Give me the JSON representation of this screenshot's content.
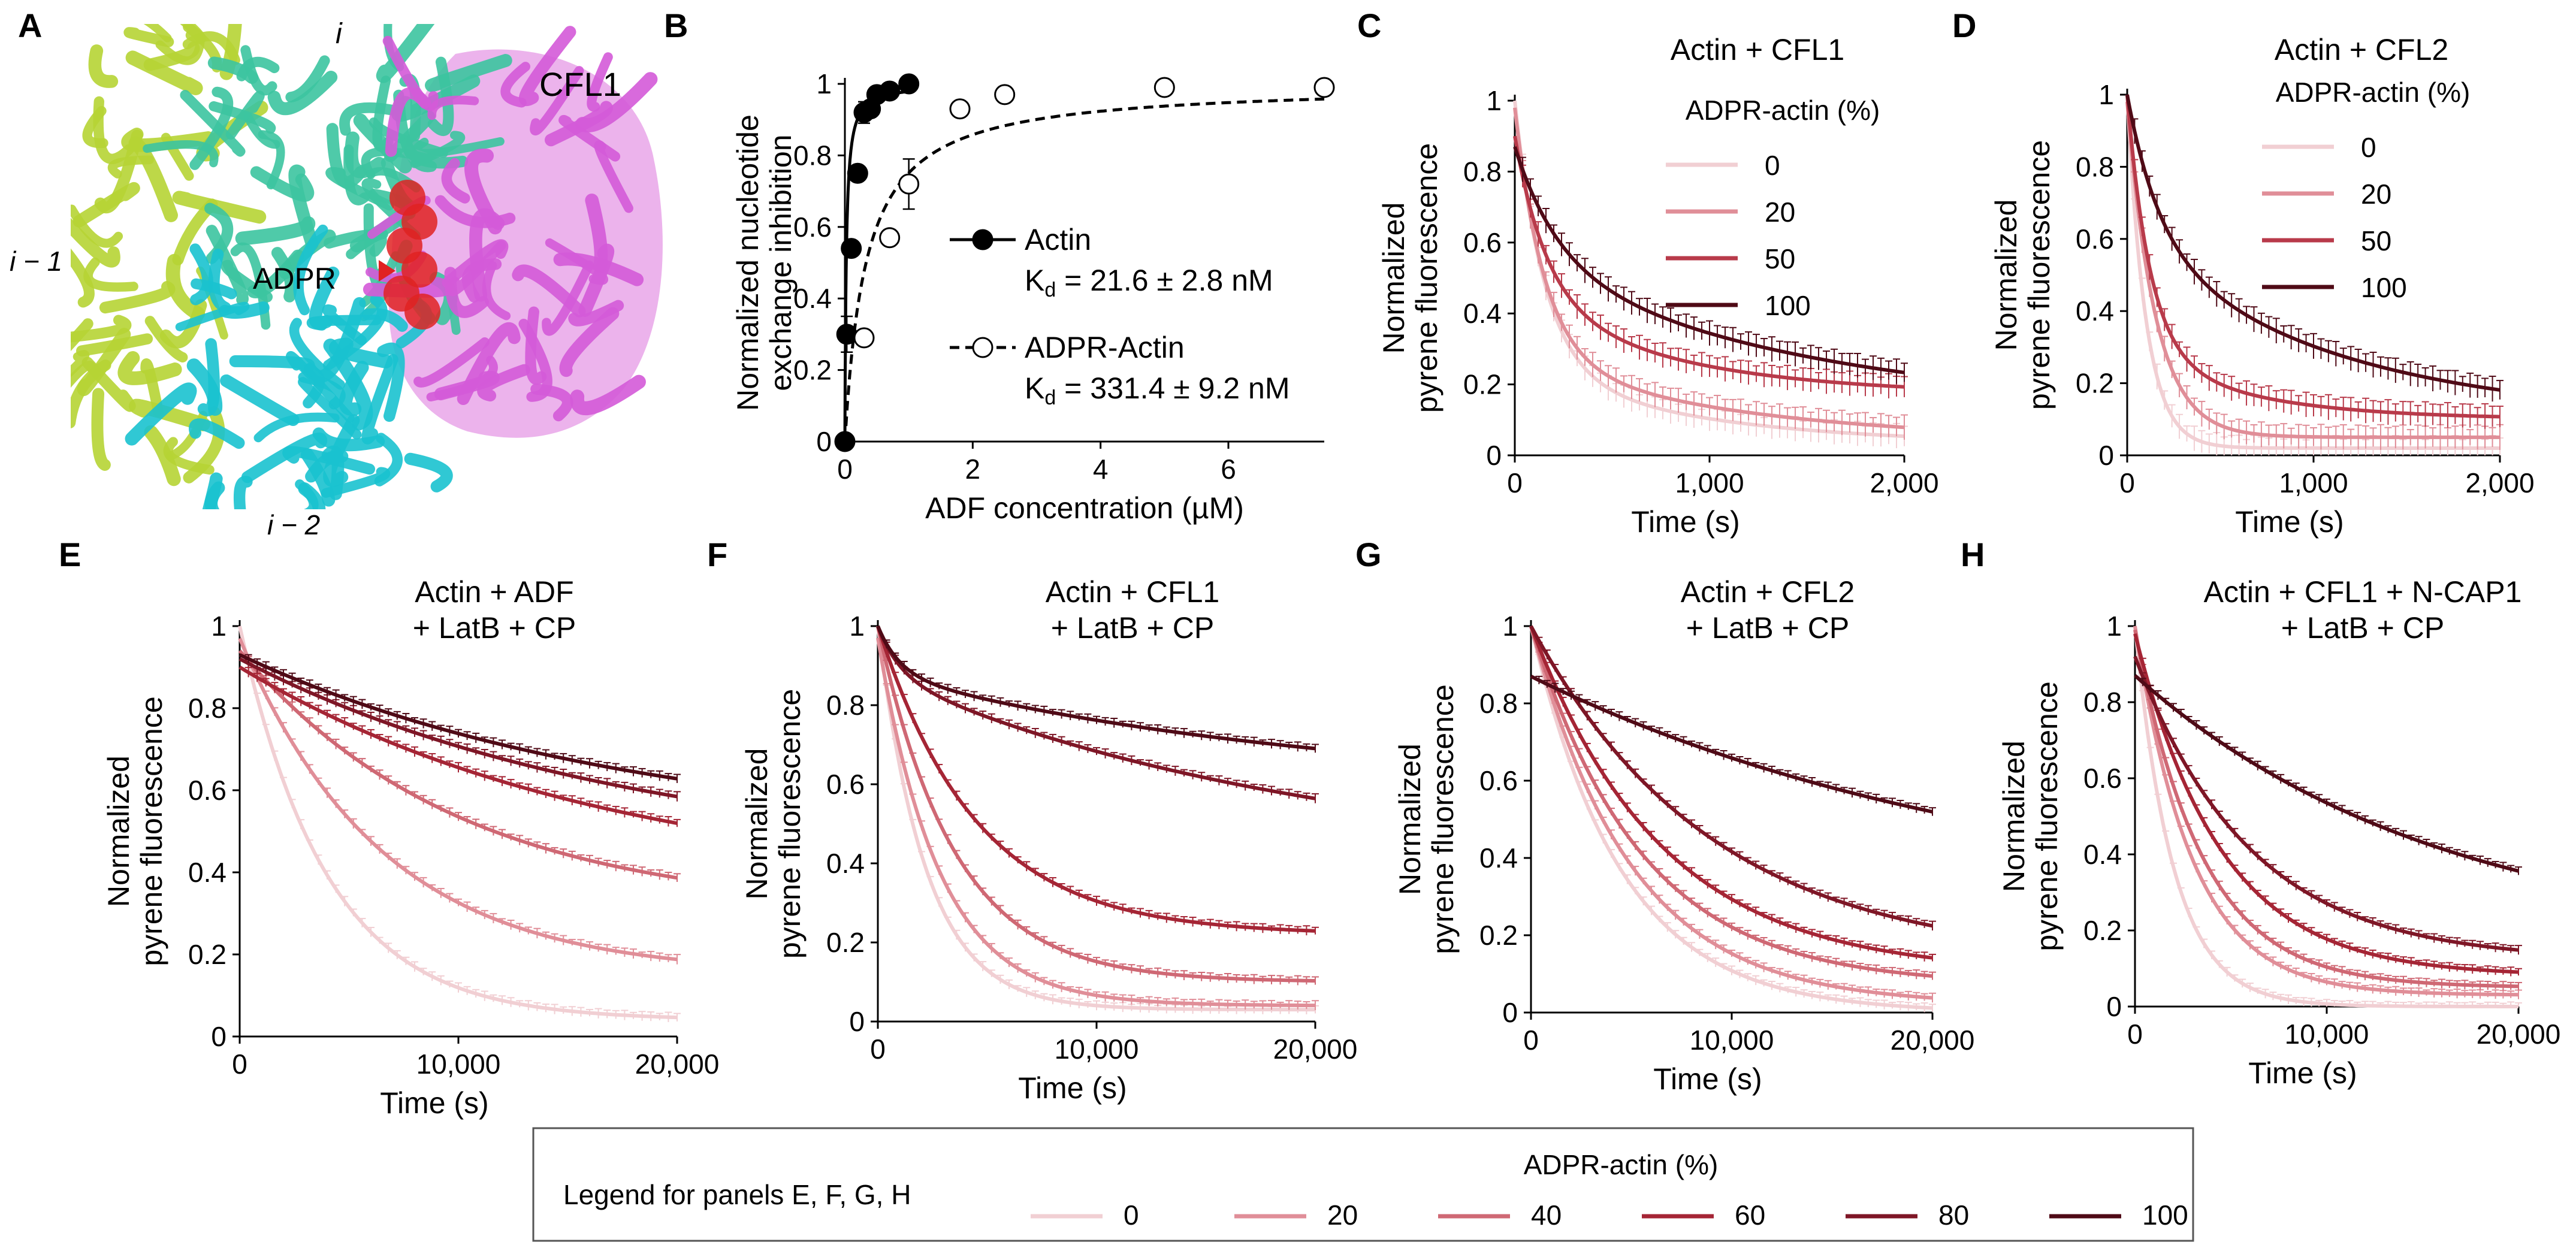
{
  "colors": {
    "p0": "#f1cfd3",
    "p20": "#e08e98",
    "p40": "#cf6874",
    "p50": "#b83a4a",
    "p60": "#a52535",
    "p80": "#7e1626",
    "p100": "#4f0a16",
    "yellowgreen": "#b6d434",
    "teal": "#3cc4a0",
    "cyan": "#19c2cf",
    "magenta": "#d45ad8",
    "pink": "#e59ae6",
    "red": "#e02222",
    "label_yellow": "#c8d40a",
    "label_teal": "#2bb48f",
    "label_cyan": "#20c4d6",
    "label_cfl1": "#e040e0"
  },
  "panelA": {
    "letter": "A",
    "labels": {
      "i": "i",
      "i_minus_1": "i − 1",
      "i_minus_2": "i − 2",
      "cfl1": "CFL1",
      "adpr": "ADPR"
    }
  },
  "chart_data": [
    {
      "panel": "B",
      "type": "scatter",
      "ylabel": [
        "Normalized nucleotide",
        "exchange inhibition"
      ],
      "xlabel": "ADF concentration (µM)",
      "xlim": [
        0,
        7.5
      ],
      "ylim": [
        0,
        1
      ],
      "xticks": [
        0,
        2,
        4,
        6
      ],
      "xtick_labels": [
        "0",
        "2",
        "4",
        "6"
      ],
      "yticks": [
        0,
        0.2,
        0.4,
        0.6,
        0.8,
        1
      ],
      "ytick_labels": [
        "0",
        "0.2",
        "0.4",
        "0.6",
        "0.8",
        "1"
      ],
      "series": [
        {
          "name": "Actin",
          "kd_label": "K",
          "kd_sub": "d",
          "kd_value": " = 21.6 ± 2.8 nM",
          "Kd": 0.0216,
          "filled": true,
          "line": "solid",
          "x": [
            0,
            0.03,
            0.1,
            0.2,
            0.3,
            0.4,
            0.5,
            0.7,
            1.0
          ],
          "y": [
            0,
            0.3,
            0.54,
            0.75,
            0.92,
            0.93,
            0.97,
            0.98,
            1.0
          ],
          "err": [
            0,
            0.05,
            0.02,
            0.02,
            0.03,
            0.02,
            0.02,
            0.02,
            0.01
          ]
        },
        {
          "name": "ADPR-Actin",
          "kd_label": "K",
          "kd_sub": "d",
          "kd_value": " = 331.4 ± 9.2 nM",
          "Kd": 0.3314,
          "filled": false,
          "line": "dashed",
          "x": [
            0.3,
            0.7,
            1.0,
            1.8,
            2.5,
            5.0,
            7.5
          ],
          "y": [
            0.29,
            0.57,
            0.72,
            0.93,
            0.97,
            0.99,
            0.99
          ],
          "err": [
            0.02,
            0.02,
            0.07,
            0.02,
            0.02,
            0.02,
            0.02
          ]
        }
      ]
    },
    {
      "panel": "C",
      "type": "line",
      "title": [
        "Actin + CFL1"
      ],
      "legend_title": "ADPR-actin (%)",
      "legend_values": [
        "0",
        "20",
        "50",
        "100"
      ],
      "legend_colors": [
        "p0",
        "p20",
        "p50",
        "p100"
      ],
      "ylabel": [
        "Normalized",
        "pyrene fluorescence"
      ],
      "xlabel": "Time (s)",
      "xlim": [
        0,
        2000
      ],
      "ylim": [
        0,
        1
      ],
      "xticks": [
        0,
        1000,
        2000
      ],
      "xtick_labels": [
        "0",
        "1,000",
        "2,000"
      ],
      "yticks": [
        0,
        0.2,
        0.4,
        0.6,
        0.8,
        1
      ],
      "ytick_labels": [
        "0",
        "0.2",
        "0.4",
        "0.6",
        "0.8",
        "1"
      ],
      "series": [
        {
          "name": "0",
          "color": "p0",
          "model": [
            [
              0.75,
              150
            ],
            [
              0.22,
              900
            ]
          ],
          "plateau": 0.03
        },
        {
          "name": "20",
          "color": "p20",
          "model": [
            [
              0.7,
              150
            ],
            [
              0.24,
              1100
            ]
          ],
          "plateau": 0.04
        },
        {
          "name": "50",
          "color": "p50",
          "model": [
            [
              0.45,
              160
            ],
            [
              0.28,
              800
            ]
          ],
          "plateau": 0.17
        },
        {
          "name": "100",
          "color": "p100",
          "model": [
            [
              0.32,
              220
            ],
            [
              0.43,
              1500
            ]
          ],
          "plateau": 0.12
        }
      ]
    },
    {
      "panel": "D",
      "type": "line",
      "title": [
        "Actin + CFL2"
      ],
      "legend_title": "ADPR-actin (%)",
      "legend_values": [
        "0",
        "20",
        "50",
        "100"
      ],
      "legend_colors": [
        "p0",
        "p20",
        "p50",
        "p100"
      ],
      "ylabel": [
        "Normalized",
        "pyrene fluorescence"
      ],
      "xlabel": "Time (s)",
      "xlim": [
        0,
        2000
      ],
      "ylim": [
        0,
        1
      ],
      "xticks": [
        0,
        1000,
        2000
      ],
      "xtick_labels": [
        "0",
        "1,000",
        "2,000"
      ],
      "yticks": [
        0,
        0.2,
        0.4,
        0.6,
        0.8,
        1
      ],
      "ytick_labels": [
        "0",
        "0.2",
        "0.4",
        "0.6",
        "0.8",
        "1"
      ],
      "series": [
        {
          "name": "0",
          "color": "p0",
          "model": [
            [
              0.98,
              100
            ]
          ],
          "plateau": 0.02
        },
        {
          "name": "20",
          "color": "p20",
          "model": [
            [
              0.93,
              150
            ]
          ],
          "plateau": 0.05
        },
        {
          "name": "50",
          "color": "p50",
          "model": [
            [
              0.7,
              120
            ],
            [
              0.2,
              600
            ]
          ],
          "plateau": 0.1
        },
        {
          "name": "100",
          "color": "p100",
          "model": [
            [
              0.4,
              170
            ],
            [
              0.5,
              1100
            ]
          ],
          "plateau": 0.1
        }
      ]
    },
    {
      "panel": "E",
      "type": "line",
      "title": [
        "Actin + ADF",
        "+ LatB + CP"
      ],
      "ylabel": [
        "Normalized",
        "pyrene fluorescence"
      ],
      "xlabel": "Time (s)",
      "xlim": [
        0,
        20000
      ],
      "ylim": [
        0,
        1
      ],
      "xticks": [
        0,
        10000,
        20000
      ],
      "xtick_labels": [
        "0",
        "10,000",
        "20,000"
      ],
      "yticks": [
        0,
        0.2,
        0.4,
        0.6,
        0.8,
        1
      ],
      "ytick_labels": [
        "0",
        "0.2",
        "0.4",
        "0.6",
        "0.8",
        "1"
      ],
      "series": [
        {
          "name": "0",
          "color": "p0",
          "model": [
            [
              0.96,
              4000
            ]
          ],
          "plateau": 0.04
        },
        {
          "name": "20",
          "color": "p20",
          "model": [
            [
              0.82,
              6500
            ]
          ],
          "plateau": 0.15
        },
        {
          "name": "40",
          "color": "p40",
          "model": [
            [
              0.64,
              10000
            ]
          ],
          "plateau": 0.3
        },
        {
          "name": "60",
          "color": "p60",
          "model": [
            [
              0.55,
              17000
            ]
          ],
          "plateau": 0.35
        },
        {
          "name": "80",
          "color": "p80",
          "model": [
            [
              0.5,
              18000
            ]
          ],
          "plateau": 0.42
        },
        {
          "name": "100",
          "color": "p100",
          "model": [
            [
              0.45,
              18000
            ]
          ],
          "plateau": 0.48
        }
      ]
    },
    {
      "panel": "F",
      "type": "line",
      "title": [
        "Actin + CFL1",
        "+ LatB + CP"
      ],
      "ylabel": [
        "Normalized",
        "pyrene fluorescence"
      ],
      "xlabel": "Time (s)",
      "xlim": [
        0,
        20000
      ],
      "ylim": [
        0,
        1
      ],
      "xticks": [
        0,
        10000,
        20000
      ],
      "xtick_labels": [
        "0",
        "10,000",
        "20,000"
      ],
      "yticks": [
        0,
        0.2,
        0.4,
        0.6,
        0.8,
        1
      ],
      "ytick_labels": [
        "0",
        "0.2",
        "0.4",
        "0.6",
        "0.8",
        "1"
      ],
      "series": [
        {
          "name": "0",
          "color": "p0",
          "model": [
            [
              0.97,
              2200
            ]
          ],
          "plateau": 0.03
        },
        {
          "name": "20",
          "color": "p20",
          "model": [
            [
              0.93,
              2800
            ]
          ],
          "plateau": 0.04
        },
        {
          "name": "40",
          "color": "p40",
          "model": [
            [
              0.9,
              3500
            ]
          ],
          "plateau": 0.1
        },
        {
          "name": "60",
          "color": "p60",
          "model": [
            [
              0.78,
              4500
            ]
          ],
          "plateau": 0.22
        },
        {
          "name": "80",
          "color": "p80",
          "model": [
            [
              0.12,
              1000
            ],
            [
              0.5,
              20000
            ]
          ],
          "plateau": 0.38
        },
        {
          "name": "100",
          "color": "p100",
          "model": [
            [
              0.12,
              1000
            ],
            [
              0.3,
              20000
            ]
          ],
          "plateau": 0.58
        }
      ]
    },
    {
      "panel": "G",
      "type": "line",
      "title": [
        "Actin + CFL2",
        "+ LatB + CP"
      ],
      "ylabel": [
        "Normalized",
        "pyrene fluorescence"
      ],
      "xlabel": "Time (s)",
      "xlim": [
        0,
        20000
      ],
      "ylim": [
        0,
        1
      ],
      "xticks": [
        0,
        10000,
        20000
      ],
      "xtick_labels": [
        "0",
        "10,000",
        "20,000"
      ],
      "yticks": [
        0,
        0.2,
        0.4,
        0.6,
        0.8,
        1
      ],
      "ytick_labels": [
        "0",
        "0.2",
        "0.4",
        "0.6",
        "0.8",
        "1"
      ],
      "series": [
        {
          "name": "0",
          "color": "p0",
          "model": [
            [
              1.0,
              4500
            ]
          ],
          "plateau": 0.0
        },
        {
          "name": "20",
          "color": "p20",
          "model": [
            [
              0.98,
              5000
            ]
          ],
          "plateau": 0.02
        },
        {
          "name": "40",
          "color": "p40",
          "model": [
            [
              0.93,
              5500
            ]
          ],
          "plateau": 0.07
        },
        {
          "name": "60",
          "color": "p60",
          "model": [
            [
              0.9,
              6500
            ]
          ],
          "plateau": 0.1
        },
        {
          "name": "80",
          "color": "p80",
          "model": [
            [
              0.87,
              9000
            ]
          ],
          "plateau": 0.13
        },
        {
          "name": "100",
          "color": "p100",
          "model": [
            [
              0.62,
              24000
            ]
          ],
          "plateau": 0.25
        }
      ]
    },
    {
      "panel": "H",
      "type": "line",
      "title": [
        "Actin + CFL1 + N-CAP1",
        "+ LatB + CP"
      ],
      "ylabel": [
        "Normalized",
        "pyrene fluorescence"
      ],
      "xlabel": "Time (s)",
      "xlim": [
        0,
        20000
      ],
      "ylim": [
        0,
        1
      ],
      "xticks": [
        0,
        10000,
        20000
      ],
      "xtick_labels": [
        "0",
        "10,000",
        "20,000"
      ],
      "yticks": [
        0,
        0.2,
        0.4,
        0.6,
        0.8,
        1
      ],
      "ytick_labels": [
        "0",
        "0.2",
        "0.4",
        "0.6",
        "0.8",
        "1"
      ],
      "series": [
        {
          "name": "0",
          "color": "p0",
          "model": [
            [
              1.0,
              2000
            ]
          ],
          "plateau": 0.0
        },
        {
          "name": "20",
          "color": "p20",
          "model": [
            [
              0.97,
              3000
            ]
          ],
          "plateau": 0.03
        },
        {
          "name": "40",
          "color": "p40",
          "model": [
            [
              0.94,
              3500
            ]
          ],
          "plateau": 0.05
        },
        {
          "name": "60",
          "color": "p60",
          "model": [
            [
              0.9,
              4500
            ]
          ],
          "plateau": 0.08
        },
        {
          "name": "80",
          "color": "p80",
          "model": [
            [
              0.8,
              6000
            ]
          ],
          "plateau": 0.12
        },
        {
          "name": "100",
          "color": "p100",
          "model": [
            [
              0.72,
              16000
            ]
          ],
          "plateau": 0.15
        }
      ]
    }
  ],
  "legend": {
    "description": "Legend for panels E, F, G, H",
    "title": "ADPR-actin (%)",
    "items": [
      {
        "label": "0",
        "color": "p0"
      },
      {
        "label": "20",
        "color": "p20"
      },
      {
        "label": "40",
        "color": "p40"
      },
      {
        "label": "60",
        "color": "p60"
      },
      {
        "label": "80",
        "color": "p80"
      },
      {
        "label": "100",
        "color": "p100"
      }
    ]
  }
}
